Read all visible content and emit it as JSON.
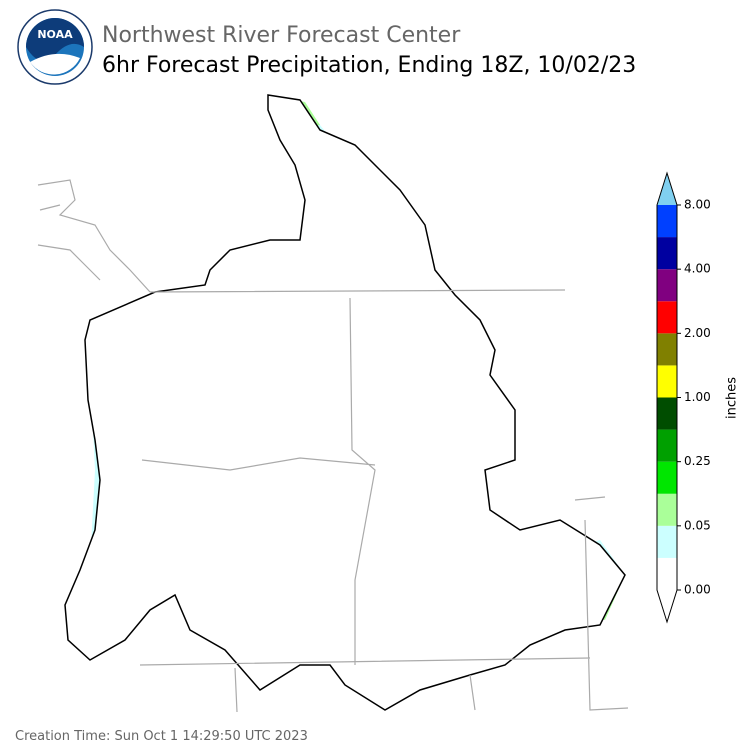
{
  "header": {
    "logo_text": "NOAA",
    "title": "Northwest River Forecast Center",
    "subtitle": "6hr Forecast Precipitation, Ending 18Z, 10/02/23"
  },
  "colorbar": {
    "label": "inches",
    "colors": [
      "#ffffff",
      "#ccffff",
      "#aaff99",
      "#00e600",
      "#00a000",
      "#004d00",
      "#ffff00",
      "#808000",
      "#ff0000",
      "#800080",
      "#0000a0",
      "#0040ff"
    ],
    "under_color": "#ffffff",
    "over_color": "#80d0f0",
    "ticks": [
      "0.00",
      "0.05",
      "0.25",
      "1.00",
      "2.00",
      "4.00",
      "8.00"
    ]
  },
  "footer": {
    "creation_time": "Creation Time: Sun Oct 1 14:29:50 UTC 2023"
  }
}
